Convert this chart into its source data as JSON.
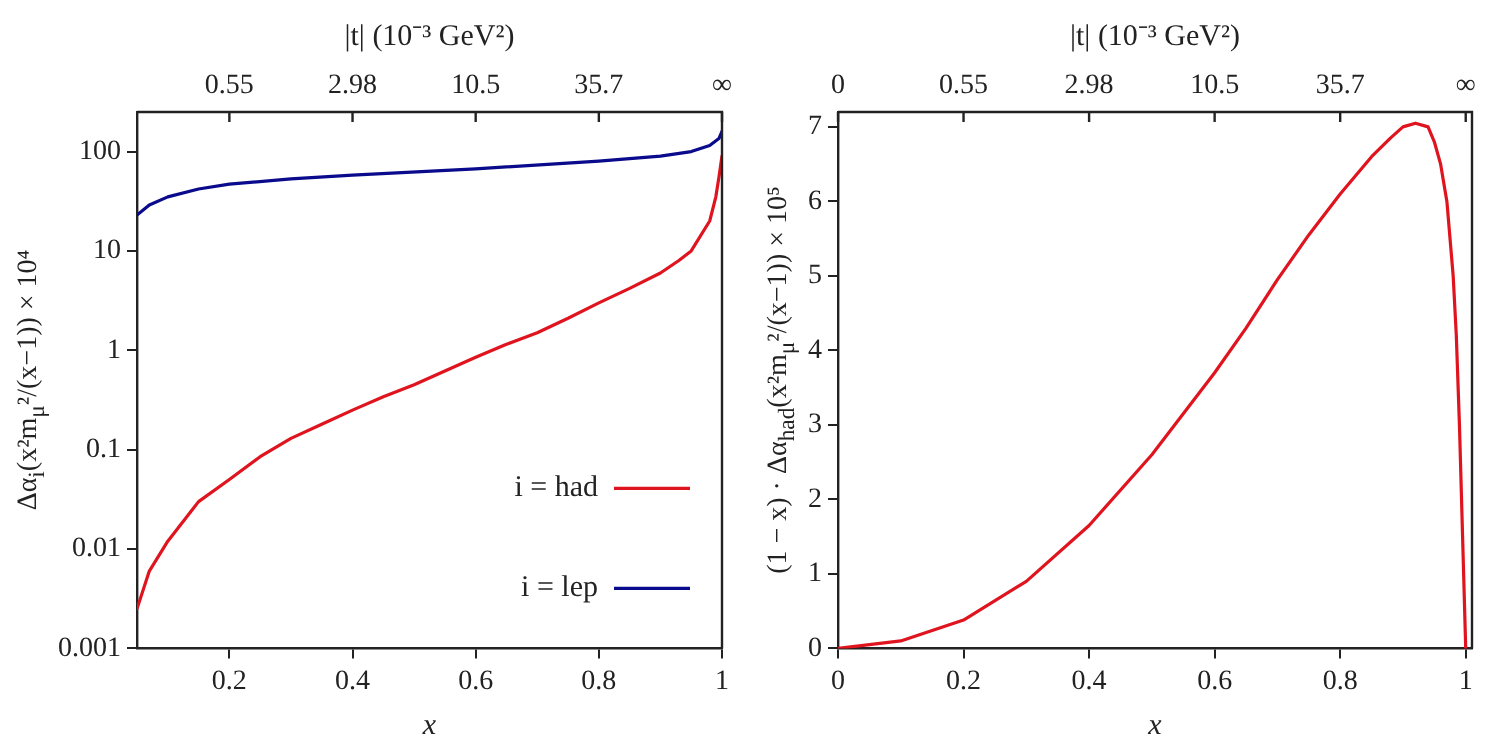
{
  "chart_data": [
    {
      "type": "line",
      "xlabel": "x",
      "x2label": "|t| (10⁻³ GeV²)",
      "ylabel": "Δα$_{i}$(x²m$_{μ}$²/(x−1)) × 10⁴",
      "log": "y",
      "xlim": [
        0.05,
        1
      ],
      "xticks": [
        0.2,
        0.4,
        0.6,
        0.8,
        1
      ],
      "ylim": [
        0.001,
        250
      ],
      "yticks": [
        0.001,
        0.01,
        0.1,
        1,
        10,
        100
      ],
      "grid": false,
      "legend": "bottom right",
      "marker": "none",
      "line_style": "solid",
      "annotations": [
        "0.55",
        "2.98",
        "10.5",
        "35.7",
        "∞"
      ],
      "series": [
        {
          "name": "i = had",
          "color": "#e0141e",
          "x": [
            0.05,
            0.07,
            0.1,
            0.15,
            0.2,
            0.25,
            0.3,
            0.35,
            0.4,
            0.45,
            0.5,
            0.55,
            0.6,
            0.65,
            0.7,
            0.75,
            0.8,
            0.85,
            0.9,
            0.93,
            0.95,
            0.98,
            0.99,
            0.995,
            1
          ],
          "values": [
            0.0025,
            0.006,
            0.012,
            0.03,
            0.05,
            0.085,
            0.13,
            0.18,
            0.25,
            0.34,
            0.45,
            0.62,
            0.85,
            1.15,
            1.5,
            2.1,
            3,
            4.2,
            6,
            8,
            10,
            20,
            35,
            55,
            90
          ]
        },
        {
          "name": "i = lep",
          "color": "#0a0a8c",
          "x": [
            0.05,
            0.07,
            0.1,
            0.15,
            0.2,
            0.3,
            0.4,
            0.6,
            0.8,
            0.9,
            0.95,
            0.98,
            0.995,
            1
          ],
          "values": [
            23,
            29,
            35,
            42,
            47,
            53,
            58,
            67,
            80,
            90,
            100,
            115,
            135,
            160
          ]
        }
      ]
    },
    {
      "type": "line",
      "xlabel": "x",
      "x2label": "|t| (10⁻³ GeV²)",
      "ylabel": "(1 − x) · Δα$_{had}$(x²m$_{μ}$²/(x−1)) × 10⁵",
      "xlim": [
        0,
        1.01
      ],
      "xticks": [
        0,
        0.2,
        0.4,
        0.6,
        0.8,
        1
      ],
      "ylim": [
        0,
        7.2
      ],
      "yticks": [
        0,
        1,
        2,
        3,
        4,
        5,
        6,
        7
      ],
      "grid": false,
      "legend": false,
      "marker": "none",
      "line_style": "solid",
      "annotations": [
        "0",
        "0.55",
        "2.98",
        "10.5",
        "35.7",
        "∞"
      ],
      "series": [
        {
          "color": "#e0141e",
          "x": [
            0,
            0.1,
            0.2,
            0.3,
            0.4,
            0.5,
            0.6,
            0.65,
            0.7,
            0.75,
            0.8,
            0.85,
            0.88,
            0.9,
            0.92,
            0.94,
            0.95,
            0.96,
            0.97,
            0.98,
            0.985,
            0.99,
            0.995,
            1
          ],
          "values": [
            0,
            0.1,
            0.38,
            0.9,
            1.65,
            2.6,
            3.7,
            4.3,
            4.95,
            5.55,
            6.1,
            6.6,
            6.85,
            7.0,
            7.05,
            7.0,
            6.8,
            6.5,
            6.0,
            5.0,
            4.2,
            3.0,
            1.5,
            0
          ]
        }
      ]
    }
  ]
}
